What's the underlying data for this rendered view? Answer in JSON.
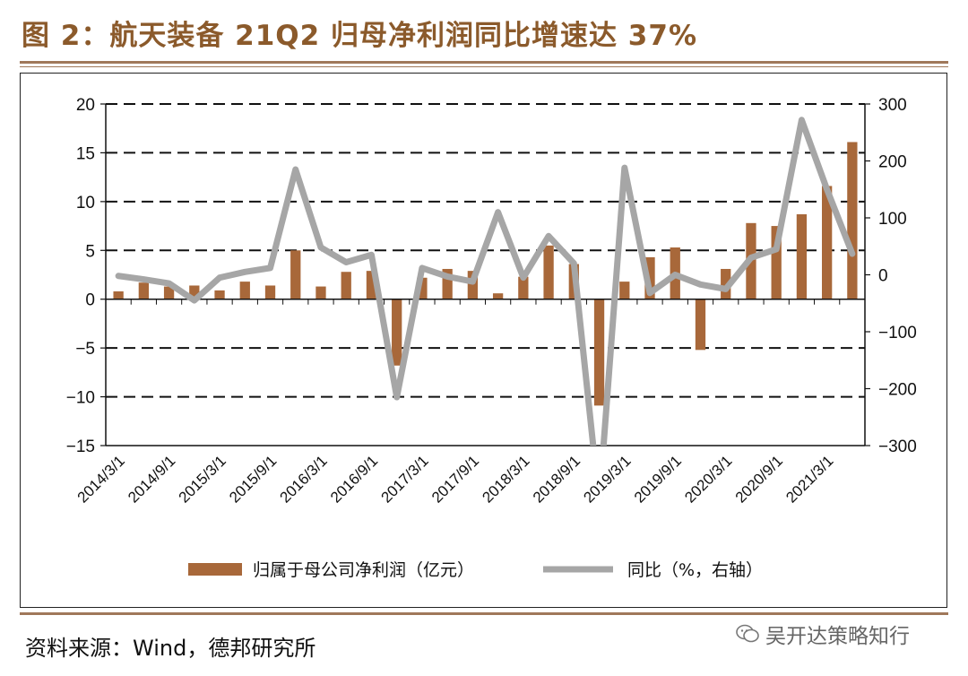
{
  "header": {
    "title": "图 2：航天装备 21Q2 归母净利润同比增速达 37%"
  },
  "footer": {
    "source": "资料来源：Wind，德邦研究所",
    "watermark": "吴开达策略知行"
  },
  "colors": {
    "bar": "#A8683A",
    "line": "#A6A6A6",
    "accent": "#8B5A2B"
  },
  "chart_data": {
    "type": "bar+line",
    "title": "航天装备 21Q2 归母净利润同比增速达 37%",
    "categories": [
      "2014/3/1",
      "2014/6/1",
      "2014/9/1",
      "2014/12/1",
      "2015/3/1",
      "2015/6/1",
      "2015/9/1",
      "2015/12/1",
      "2016/3/1",
      "2016/6/1",
      "2016/9/1",
      "2016/12/1",
      "2017/3/1",
      "2017/6/1",
      "2017/9/1",
      "2017/12/1",
      "2018/3/1",
      "2018/6/1",
      "2018/9/1",
      "2018/12/1",
      "2019/3/1",
      "2019/6/1",
      "2019/9/1",
      "2019/12/1",
      "2020/3/1",
      "2020/6/1",
      "2020/9/1",
      "2020/12/1",
      "2021/3/1",
      "2021/6/1"
    ],
    "x_tick_labels": [
      "2014/3/1",
      "2014/9/1",
      "2015/3/1",
      "2015/9/1",
      "2016/3/1",
      "2016/9/1",
      "2017/3/1",
      "2017/9/1",
      "2018/3/1",
      "2018/9/1",
      "2019/3/1",
      "2019/9/1",
      "2020/3/1",
      "2020/9/1",
      "2021/3/1"
    ],
    "series": [
      {
        "name": "归属于母公司净利润（亿元）",
        "type": "bar",
        "axis": "left",
        "values": [
          0.8,
          1.7,
          1.3,
          1.4,
          0.9,
          1.8,
          1.4,
          5.0,
          1.3,
          2.8,
          2.9,
          -6.8,
          2.2,
          3.1,
          2.9,
          0.6,
          2.3,
          5.5,
          3.6,
          -10.9,
          1.8,
          4.3,
          5.3,
          -5.2,
          3.1,
          7.8,
          7.5,
          8.7,
          11.6,
          16.1
        ]
      },
      {
        "name": "同比（%，右轴）",
        "type": "line",
        "axis": "right",
        "values": [
          -2,
          -8,
          -15,
          -45,
          -5,
          5,
          12,
          185,
          48,
          22,
          35,
          -215,
          12,
          -3,
          -12,
          110,
          -5,
          68,
          20,
          -400,
          188,
          -32,
          0,
          -17,
          -25,
          30,
          45,
          272,
          150,
          37
        ]
      }
    ],
    "y_left": {
      "min": -15,
      "max": 20,
      "ticks": [
        20,
        15,
        10,
        5,
        0,
        -5,
        -10,
        -15
      ]
    },
    "y_right": {
      "min": -300,
      "max": 300,
      "ticks": [
        300,
        200,
        100,
        0,
        -100,
        -200,
        -300
      ],
      "tick_labels": [
        "300",
        "200",
        "100",
        "0",
        "−100",
        "−200",
        "−300"
      ]
    },
    "legend_position": "bottom",
    "grid": "dashed horizontal"
  }
}
